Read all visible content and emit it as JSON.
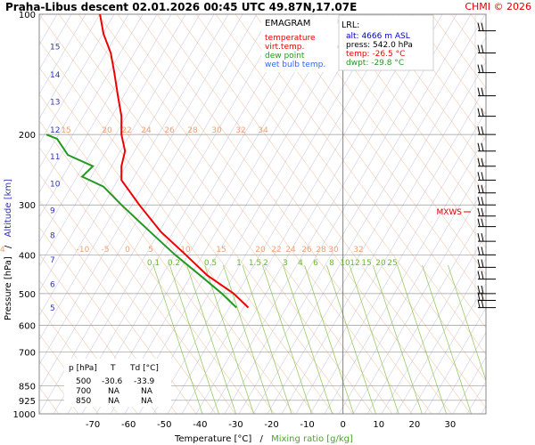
{
  "header": {
    "title": "Praha-Libus   descent   02.01.2026 00:45 UTC  49.87N,17.07E",
    "credit": "CHMI © 2026"
  },
  "legend": {
    "title": "EMAGRAM",
    "items": [
      {
        "label": "temperature",
        "color": "#ee0000"
      },
      {
        "label": "virt.temp.",
        "color": "#ee0000"
      },
      {
        "label": "dew point",
        "color": "#229922"
      },
      {
        "label": "wet bulb temp.",
        "color": "#3366ff"
      }
    ]
  },
  "lrl": {
    "title": "LRL:",
    "alt": "alt: 4666 m ASL",
    "press": "press: 542.0 hPa",
    "temp": "temp: -26.5 °C",
    "dwpt": "dwpt: -29.8 °C"
  },
  "axes": {
    "xlabel_a": "Temperature [°C]",
    "xlabel_sep": "/",
    "xlabel_b": "Mixing ratio [g/kg]",
    "ylabel_a": "Pressure [hPa]",
    "ylabel_sep": "/",
    "ylabel_b": "Altitude [km]"
  },
  "mxws": "MXWS",
  "table": {
    "headers": [
      "p [hPa]",
      "T",
      "Td [°C]"
    ],
    "rows": [
      [
        "500",
        "-30.6",
        "-33.9"
      ],
      [
        "700",
        "NA",
        "NA"
      ],
      [
        "850",
        "NA",
        "NA"
      ]
    ]
  },
  "theme_colors": {
    "temperature": "#ee0000",
    "dewpoint": "#229922",
    "wetbulb": "#3366ff",
    "isotherm": "#bbbbdd",
    "dry_adiabat": "#f4b48a",
    "moist_adiabat": "#ccccee",
    "mixing_ratio": "#99cc66",
    "altitude_labels": "#3333bb"
  },
  "chart_data": {
    "type": "line",
    "xlim": [
      -85,
      40
    ],
    "ylim": [
      1000,
      100
    ],
    "y_scale": "log",
    "x_ticks": [
      -70,
      -60,
      -50,
      -40,
      -30,
      -20,
      -10,
      0,
      10,
      20,
      30
    ],
    "y_ticks": [
      100,
      200,
      300,
      400,
      500,
      600,
      700,
      850,
      925,
      1000
    ],
    "altitude_km_ticks": [
      "5",
      "6",
      "7",
      "8",
      "9",
      "10",
      "11",
      "12",
      "13",
      "14",
      "15"
    ],
    "dry_adiabat_labels": [
      "15",
      "20",
      "22",
      "24",
      "26",
      "28",
      "30",
      "32",
      "34",
      "-10",
      "-5",
      "0",
      "5",
      "10",
      "15",
      "20",
      "22",
      "24",
      "26",
      "28",
      "30",
      "32",
      "34"
    ],
    "mixing_ratio_labels": [
      "0.1",
      "0.2",
      "0.5",
      "1",
      "1.5",
      "2",
      "3",
      "4",
      "6",
      "8",
      "10",
      "12",
      "15",
      "20",
      "25"
    ],
    "series": [
      {
        "name": "temperature",
        "points": [
          [
            -26.5,
            542
          ],
          [
            -30.6,
            500
          ],
          [
            -38,
            450
          ],
          [
            -44,
            400
          ],
          [
            -51,
            350
          ],
          [
            -57,
            300
          ],
          [
            -62,
            260
          ],
          [
            -62,
            240
          ],
          [
            -61,
            220
          ],
          [
            -62,
            200
          ],
          [
            -62,
            180
          ],
          [
            -63,
            160
          ],
          [
            -64,
            140
          ],
          [
            -65,
            125
          ],
          [
            -67,
            112
          ],
          [
            -68,
            100
          ]
        ]
      },
      {
        "name": "dew point",
        "points": [
          [
            -29.8,
            542
          ],
          [
            -33.9,
            500
          ],
          [
            -40,
            450
          ],
          [
            -47,
            400
          ],
          [
            -54,
            350
          ],
          [
            -62,
            300
          ],
          [
            -67,
            270
          ],
          [
            -73,
            255
          ],
          [
            -70,
            240
          ],
          [
            -77,
            225
          ],
          [
            -80,
            205
          ],
          [
            -83,
            200
          ]
        ]
      }
    ],
    "grid": true,
    "legend_position": "top-center"
  }
}
